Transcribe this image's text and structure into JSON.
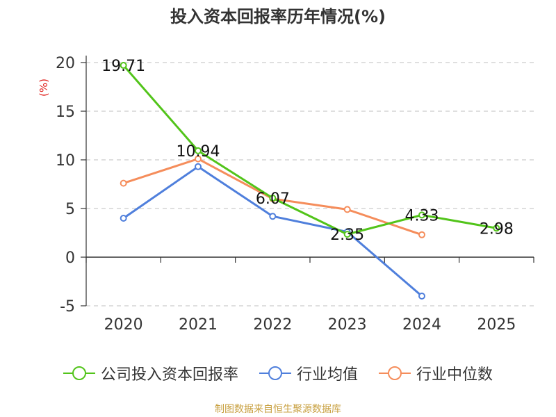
{
  "chart_data": {
    "type": "line",
    "title": "投入资本回报率历年情况(%)",
    "ylabel": "(%)",
    "categories": [
      "2020",
      "2021",
      "2022",
      "2023",
      "2024",
      "2025"
    ],
    "ylim": [
      -5,
      20
    ],
    "yticks": [
      20,
      15,
      10,
      5,
      0,
      -5
    ],
    "grid": true,
    "legend_position": "bottom",
    "series": [
      {
        "name": "公司投入资本回报率",
        "color": "#52c41a",
        "values": [
          19.71,
          10.94,
          6.07,
          2.35,
          4.33,
          2.98
        ],
        "labels": [
          "19.71",
          "10.94",
          "6.07",
          "2.35",
          "4.33",
          "2.98"
        ]
      },
      {
        "name": "行业均值",
        "color": "#4f7fdc",
        "values": [
          4.0,
          9.3,
          4.2,
          2.6,
          -4.0,
          null
        ]
      },
      {
        "name": "行业中位数",
        "color": "#f58d5b",
        "values": [
          7.6,
          10.1,
          6.0,
          4.9,
          2.3,
          null
        ]
      }
    ]
  },
  "source_note": "制图数据来自恒生聚源数据库"
}
